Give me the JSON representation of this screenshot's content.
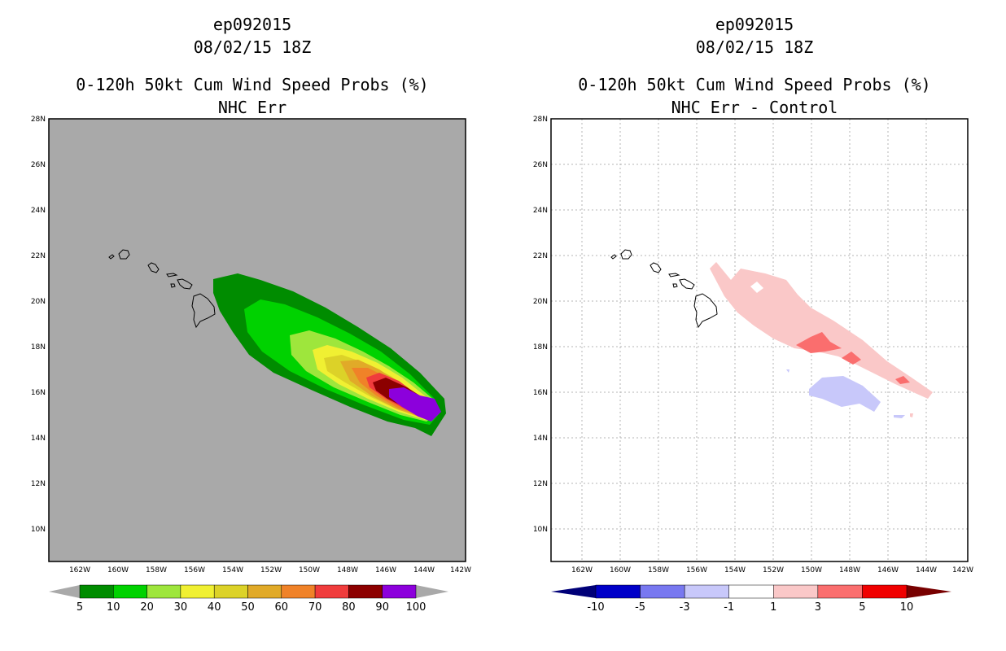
{
  "panels": [
    {
      "storm_id": "ep092015",
      "datetime": "08/02/15 18Z",
      "product": "0-120h 50kt Cum Wind Speed Probs (%)",
      "subtitle": "NHC Err",
      "background_color": "#a9a9a9",
      "colorbar": {
        "labels": [
          "5",
          "10",
          "20",
          "30",
          "40",
          "50",
          "60",
          "70",
          "80",
          "90",
          "100"
        ],
        "colors": [
          "#008c00",
          "#00d200",
          "#9ee63c",
          "#f0f032",
          "#dcd228",
          "#e1aa28",
          "#f08228",
          "#f03c3c",
          "#8c0000",
          "#8c00dc"
        ]
      }
    },
    {
      "storm_id": "ep092015",
      "datetime": "08/02/15 18Z",
      "product": "0-120h 50kt Cum Wind Speed Probs (%)",
      "subtitle": "NHC Err - Control",
      "background_color": "#ffffff",
      "colorbar": {
        "labels": [
          "-10",
          "-5",
          "-3",
          "-1",
          "1",
          "3",
          "5",
          "10"
        ],
        "colors": [
          "#0000c8",
          "#7878f0",
          "#c8c8fa",
          "#ffffff",
          "#fac8c8",
          "#fa6e6e",
          "#f00000"
        ]
      }
    }
  ],
  "map": {
    "lat_labels": [
      "28N",
      "26N",
      "24N",
      "22N",
      "20N",
      "18N",
      "16N",
      "14N",
      "12N",
      "10N"
    ],
    "lon_labels": [
      "162W",
      "160W",
      "158W",
      "156W",
      "154W",
      "152W",
      "150W",
      "148W",
      "146W",
      "144W",
      "142W"
    ]
  }
}
